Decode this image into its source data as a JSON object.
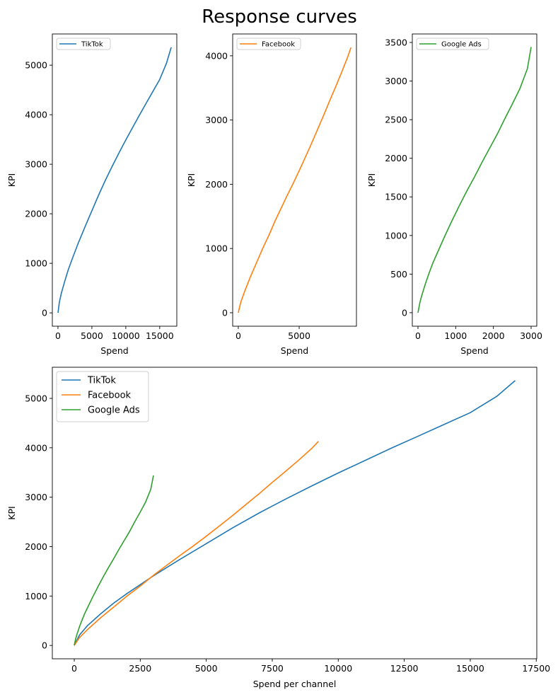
{
  "title": "Response curves",
  "chart_data": [
    {
      "type": "line",
      "xlabel": "Spend",
      "ylabel": "KPI",
      "xlim": [
        -830,
        17520
      ],
      "ylim": [
        -270,
        5630
      ],
      "xticks": [
        0,
        5000,
        10000,
        15000
      ],
      "yticks": [
        0,
        1000,
        2000,
        3000,
        4000,
        5000
      ],
      "grid": false,
      "legend_position": "upper-left",
      "series": [
        {
          "name": "TikTok",
          "color": "#1f77b4",
          "x": [
            0,
            200,
            500,
            1000,
            1500,
            2000,
            3000,
            4000,
            5000,
            6000,
            7000,
            8000,
            9000,
            10000,
            11000,
            12000,
            13000,
            14000,
            15000,
            16000,
            16700
          ],
          "y": [
            0,
            210,
            400,
            640,
            860,
            1050,
            1410,
            1740,
            2060,
            2380,
            2680,
            2960,
            3230,
            3490,
            3740,
            3990,
            4230,
            4470,
            4710,
            5040,
            5360
          ]
        }
      ]
    },
    {
      "type": "line",
      "xlabel": "Spend",
      "ylabel": "KPI",
      "xlim": [
        -460,
        9700
      ],
      "ylim": [
        -210,
        4340
      ],
      "xticks": [
        0,
        5000
      ],
      "yticks": [
        0,
        1000,
        2000,
        3000,
        4000
      ],
      "grid": false,
      "legend_position": "upper-left",
      "series": [
        {
          "name": "Facebook",
          "color": "#ff7f0e",
          "x": [
            0,
            200,
            500,
            1000,
            1500,
            2000,
            2500,
            3000,
            3500,
            4000,
            4500,
            5000,
            5500,
            6000,
            6500,
            7000,
            7500,
            8000,
            8500,
            9000,
            9250
          ],
          "y": [
            0,
            160,
            320,
            560,
            780,
            1000,
            1200,
            1420,
            1620,
            1820,
            2010,
            2210,
            2420,
            2630,
            2850,
            3070,
            3300,
            3520,
            3750,
            3990,
            4130
          ]
        }
      ]
    },
    {
      "type": "line",
      "xlabel": "Spend",
      "ylabel": "KPI",
      "xlim": [
        -150,
        3150
      ],
      "ylim": [
        -175,
        3610
      ],
      "xticks": [
        0,
        1000,
        2000,
        3000
      ],
      "yticks": [
        0,
        500,
        1000,
        1500,
        2000,
        2500,
        3000,
        3500
      ],
      "grid": false,
      "legend_position": "upper-left",
      "series": [
        {
          "name": "Google Ads",
          "color": "#2ca02c",
          "x": [
            0,
            50,
            100,
            200,
            300,
            400,
            500,
            700,
            900,
            1100,
            1300,
            1500,
            1700,
            1900,
            2100,
            2300,
            2500,
            2700,
            2900,
            3000
          ],
          "y": [
            0,
            130,
            220,
            380,
            520,
            650,
            760,
            980,
            1190,
            1390,
            1580,
            1760,
            1950,
            2130,
            2310,
            2510,
            2700,
            2900,
            3160,
            3440
          ]
        }
      ]
    },
    {
      "type": "line",
      "xlabel": "Spend per channel",
      "ylabel": "KPI",
      "xlim": [
        -830,
        17520
      ],
      "ylim": [
        -270,
        5630
      ],
      "xticks": [
        0,
        2500,
        5000,
        7500,
        10000,
        12500,
        15000,
        17500
      ],
      "yticks": [
        0,
        1000,
        2000,
        3000,
        4000,
        5000
      ],
      "grid": false,
      "legend_position": "upper-left",
      "series": [
        {
          "name": "TikTok",
          "color": "#1f77b4",
          "x": [
            0,
            200,
            500,
            1000,
            1500,
            2000,
            3000,
            4000,
            5000,
            6000,
            7000,
            8000,
            9000,
            10000,
            11000,
            12000,
            13000,
            14000,
            15000,
            16000,
            16700
          ],
          "y": [
            0,
            210,
            400,
            640,
            860,
            1050,
            1410,
            1740,
            2060,
            2380,
            2680,
            2960,
            3230,
            3490,
            3740,
            3990,
            4230,
            4470,
            4710,
            5040,
            5360
          ]
        },
        {
          "name": "Facebook",
          "color": "#ff7f0e",
          "x": [
            0,
            200,
            500,
            1000,
            1500,
            2000,
            2500,
            3000,
            3500,
            4000,
            4500,
            5000,
            5500,
            6000,
            6500,
            7000,
            7500,
            8000,
            8500,
            9000,
            9250
          ],
          "y": [
            0,
            160,
            320,
            560,
            780,
            1000,
            1200,
            1420,
            1620,
            1820,
            2010,
            2210,
            2420,
            2630,
            2850,
            3070,
            3300,
            3520,
            3750,
            3990,
            4130
          ]
        },
        {
          "name": "Google Ads",
          "color": "#2ca02c",
          "x": [
            0,
            50,
            100,
            200,
            300,
            400,
            500,
            700,
            900,
            1100,
            1300,
            1500,
            1700,
            1900,
            2100,
            2300,
            2500,
            2700,
            2900,
            3000
          ],
          "y": [
            0,
            130,
            220,
            380,
            520,
            650,
            760,
            980,
            1190,
            1390,
            1580,
            1760,
            1950,
            2130,
            2310,
            2510,
            2700,
            2900,
            3160,
            3440
          ]
        }
      ]
    }
  ]
}
